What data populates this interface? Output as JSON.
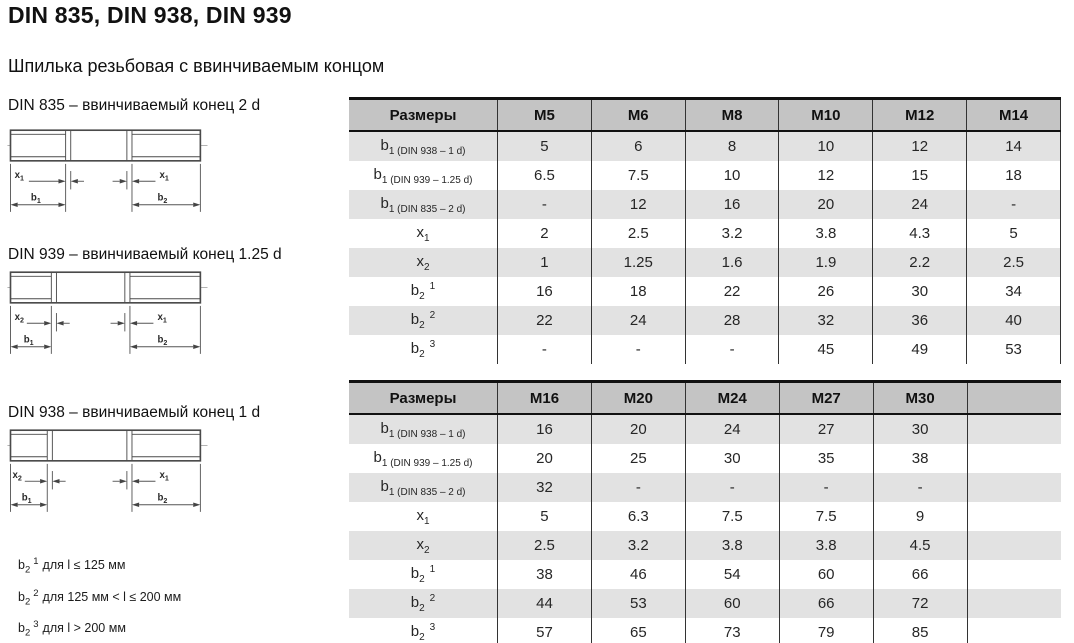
{
  "header": {
    "title": "DIN 835, DIN 938, DIN 939",
    "subtitle": "Шпилька резьбовая с ввинчиваемым концом"
  },
  "diagrams": [
    {
      "caption": "DIN 835 – ввинчиваемый конец 2 d",
      "x_left": {
        "base": "x",
        "sub": "1"
      },
      "x_right": {
        "base": "x",
        "sub": "1"
      },
      "b_left": {
        "base": "b",
        "sub": "1"
      },
      "b_right": {
        "base": "b",
        "sub": "2"
      }
    },
    {
      "caption": "DIN 939 – ввинчиваемый конец 1.25 d",
      "x_left": {
        "base": "x",
        "sub": "2"
      },
      "x_right": {
        "base": "x",
        "sub": "1"
      },
      "b_left": {
        "base": "b",
        "sub": "1"
      },
      "b_right": {
        "base": "b",
        "sub": "2"
      }
    },
    {
      "caption": "DIN 938 – ввинчиваемый конец 1 d",
      "x_left": {
        "base": "x",
        "sub": "2"
      },
      "x_right": {
        "base": "x",
        "sub": "1"
      },
      "b_left": {
        "base": "b",
        "sub": "1"
      },
      "b_right": {
        "base": "b",
        "sub": "2"
      }
    }
  ],
  "footnotes": [
    {
      "base": "b",
      "sub": "2",
      "sup": "1",
      "text": "для l ≤ 125 мм"
    },
    {
      "base": "b",
      "sub": "2",
      "sup": "2",
      "text": "для 125 мм < l ≤ 200 мм"
    },
    {
      "base": "b",
      "sub": "2",
      "sup": "3",
      "text": "для l > 200 мм"
    }
  ],
  "tables": [
    {
      "name": "sizes-m5-m14",
      "columns": [
        "Размеры",
        "M5",
        "M6",
        "M8",
        "M10",
        "M12",
        "M14"
      ],
      "rows": [
        {
          "label": {
            "base": "b",
            "sub": "1 (DIN 938 – 1 d)"
          },
          "values": [
            "5",
            "6",
            "8",
            "10",
            "12",
            "14"
          ]
        },
        {
          "label": {
            "base": "b",
            "sub": "1 (DIN 939 – 1.25 d)"
          },
          "values": [
            "6.5",
            "7.5",
            "10",
            "12",
            "15",
            "18"
          ]
        },
        {
          "label": {
            "base": "b",
            "sub": "1 (DIN 835 – 2 d)"
          },
          "values": [
            "-",
            "12",
            "16",
            "20",
            "24",
            "-"
          ]
        },
        {
          "label": {
            "base": "x",
            "sub": "1"
          },
          "values": [
            "2",
            "2.5",
            "3.2",
            "3.8",
            "4.3",
            "5"
          ]
        },
        {
          "label": {
            "base": "x",
            "sub": "2"
          },
          "values": [
            "1",
            "1.25",
            "1.6",
            "1.9",
            "2.2",
            "2.5"
          ]
        },
        {
          "label": {
            "base": "b",
            "sub": "2",
            "sup": "1"
          },
          "values": [
            "16",
            "18",
            "22",
            "26",
            "30",
            "34"
          ]
        },
        {
          "label": {
            "base": "b",
            "sub": "2",
            "sup": "2"
          },
          "values": [
            "22",
            "24",
            "28",
            "32",
            "36",
            "40"
          ]
        },
        {
          "label": {
            "base": "b",
            "sub": "2",
            "sup": "3"
          },
          "values": [
            "-",
            "-",
            "-",
            "45",
            "49",
            "53"
          ]
        }
      ]
    },
    {
      "name": "sizes-m16-m30",
      "columns": [
        "Размеры",
        "M16",
        "M20",
        "M24",
        "M27",
        "M30",
        ""
      ],
      "rows": [
        {
          "label": {
            "base": "b",
            "sub": "1 (DIN 938 – 1 d)"
          },
          "values": [
            "16",
            "20",
            "24",
            "27",
            "30",
            ""
          ]
        },
        {
          "label": {
            "base": "b",
            "sub": "1 (DIN 939 – 1.25 d)"
          },
          "values": [
            "20",
            "25",
            "30",
            "35",
            "38",
            ""
          ]
        },
        {
          "label": {
            "base": "b",
            "sub": "1 (DIN 835 – 2 d)"
          },
          "values": [
            "32",
            "-",
            "-",
            "-",
            "-",
            ""
          ]
        },
        {
          "label": {
            "base": "x",
            "sub": "1"
          },
          "values": [
            "5",
            "6.3",
            "7.5",
            "7.5",
            "9",
            ""
          ]
        },
        {
          "label": {
            "base": "x",
            "sub": "2"
          },
          "values": [
            "2.5",
            "3.2",
            "3.8",
            "3.8",
            "4.5",
            ""
          ]
        },
        {
          "label": {
            "base": "b",
            "sub": "2",
            "sup": "1"
          },
          "values": [
            "38",
            "46",
            "54",
            "60",
            "66",
            ""
          ]
        },
        {
          "label": {
            "base": "b",
            "sub": "2",
            "sup": "2"
          },
          "values": [
            "44",
            "53",
            "60",
            "66",
            "72",
            ""
          ]
        },
        {
          "label": {
            "base": "b",
            "sub": "2",
            "sup": "3"
          },
          "values": [
            "57",
            "65",
            "73",
            "79",
            "85",
            ""
          ]
        }
      ]
    }
  ],
  "colors": {
    "header_bg": "#c4c4c4",
    "stripe_bg": "#e2e2e2",
    "grid_line": "#333333",
    "border_dark": "#111111",
    "text": "#222222"
  }
}
